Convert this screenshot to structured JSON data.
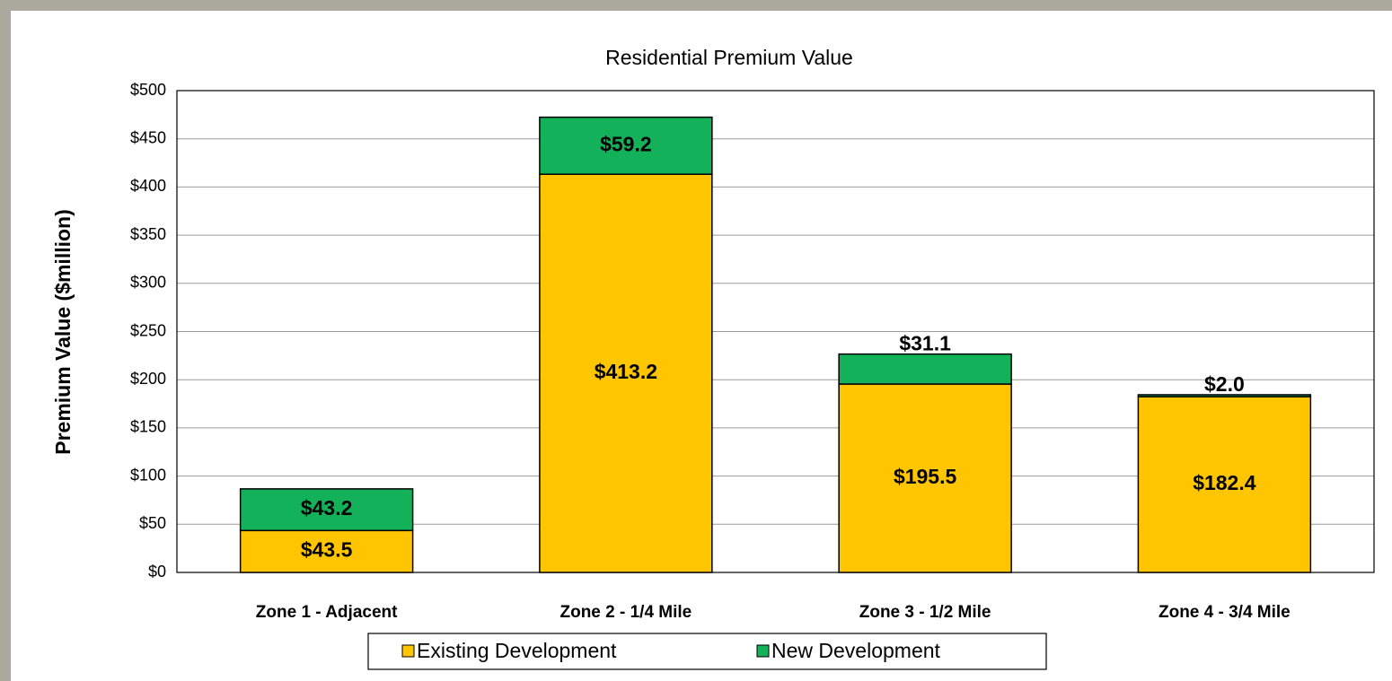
{
  "chart_data": {
    "type": "bar",
    "stacked": true,
    "title": "Residential Premium Value",
    "y_label": "Premium Value ($million)",
    "categories": [
      "Zone 1 - Adjacent",
      "Zone 2 - 1/4 Mile",
      "Zone 3 - 1/2 Mile",
      "Zone 4 - 3/4 Mile"
    ],
    "series": [
      {
        "name": "Existing Development",
        "color": "#ffc600",
        "values": [
          43.5,
          413.2,
          195.5,
          182.4
        ],
        "value_labels": [
          "$43.5",
          "$413.2",
          "$195.5",
          "$182.4"
        ]
      },
      {
        "name": "New Development",
        "color": "#12b15a",
        "values": [
          43.2,
          59.2,
          31.1,
          2.0
        ],
        "value_labels": [
          "$43.2",
          "$59.2",
          "$31.1",
          "$2.0"
        ]
      }
    ],
    "ylim": [
      0,
      500
    ],
    "yticks": [
      {
        "value": 0,
        "label": "$0"
      },
      {
        "value": 50,
        "label": "$50"
      },
      {
        "value": 100,
        "label": "$100"
      },
      {
        "value": 150,
        "label": "$150"
      },
      {
        "value": 200,
        "label": "$200"
      },
      {
        "value": 250,
        "label": "$250"
      },
      {
        "value": 300,
        "label": "$300"
      },
      {
        "value": 350,
        "label": "$350"
      },
      {
        "value": 400,
        "label": "$400"
      },
      {
        "value": 450,
        "label": "$450"
      },
      {
        "value": 500,
        "label": "$500"
      }
    ],
    "grid": true,
    "legend": "bottom"
  }
}
